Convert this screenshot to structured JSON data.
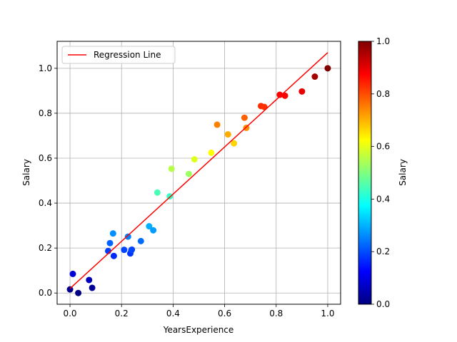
{
  "chart_data": {
    "type": "scatter",
    "title": "",
    "xlabel": "YearsExperience",
    "ylabel": "Salary",
    "xlim": [
      -0.05,
      1.05
    ],
    "ylim": [
      -0.05,
      1.12
    ],
    "x_ticks": [
      0.0,
      0.2,
      0.4,
      0.6,
      0.8,
      1.0
    ],
    "x_tick_labels": [
      "0.0",
      "0.2",
      "0.4",
      "0.6",
      "0.8",
      "1.0"
    ],
    "y_ticks": [
      0.0,
      0.2,
      0.4,
      0.6,
      0.8,
      1.0
    ],
    "y_tick_labels": [
      "0.0",
      "0.2",
      "0.4",
      "0.6",
      "0.8",
      "1.0"
    ],
    "grid": true,
    "legend": {
      "placement": "top-left",
      "entries": [
        "Regression Line"
      ]
    },
    "regression_line": {
      "name": "Regression Line",
      "color": "#ff0000",
      "x": [
        0.0,
        1.0
      ],
      "y": [
        0.02,
        1.07
      ]
    },
    "points": {
      "x": [
        0.0,
        0.011,
        0.032,
        0.074,
        0.086,
        0.148,
        0.155,
        0.167,
        0.17,
        0.21,
        0.225,
        0.234,
        0.238,
        0.24,
        0.275,
        0.307,
        0.323,
        0.339,
        0.387,
        0.394,
        0.461,
        0.483,
        0.548,
        0.571,
        0.613,
        0.636,
        0.677,
        0.684,
        0.741,
        0.754,
        0.814,
        0.834,
        0.9,
        0.95,
        1.0
      ],
      "y": [
        0.016,
        0.085,
        0.0,
        0.058,
        0.023,
        0.187,
        0.222,
        0.265,
        0.165,
        0.192,
        0.251,
        0.176,
        0.19,
        0.193,
        0.231,
        0.297,
        0.279,
        0.447,
        0.43,
        0.553,
        0.53,
        0.595,
        0.624,
        0.749,
        0.706,
        0.666,
        0.78,
        0.735,
        0.832,
        0.828,
        0.882,
        0.878,
        0.897,
        0.963,
        1.0
      ],
      "color_by": "Salary"
    },
    "colorbar": {
      "label": "Salary",
      "colormap": "jet",
      "range": [
        0.0,
        1.0
      ],
      "ticks": [
        0.0,
        0.2,
        0.4,
        0.6,
        0.8,
        1.0
      ],
      "tick_labels": [
        "0.0",
        "0.2",
        "0.4",
        "0.6",
        "0.8",
        "1.0"
      ]
    }
  }
}
